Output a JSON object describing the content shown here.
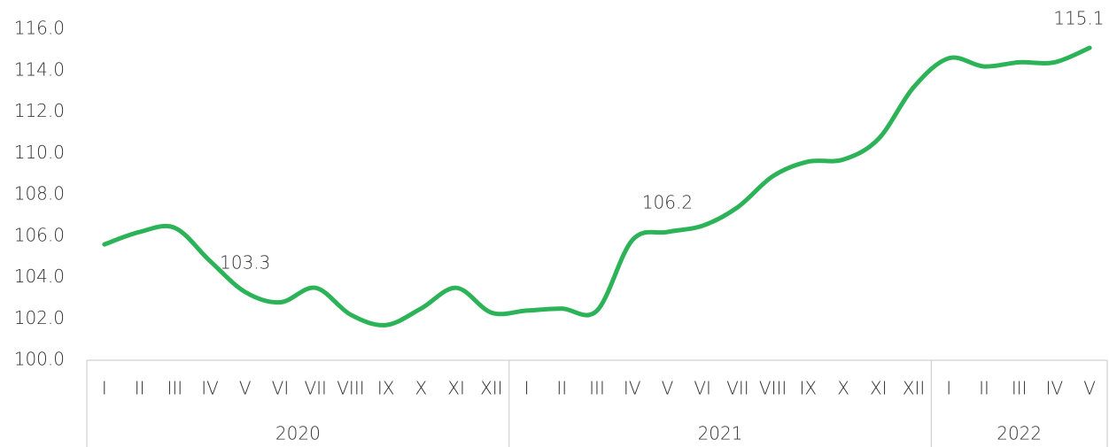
{
  "chart_data": {
    "type": "line",
    "category_groups": [
      {
        "name": "2020",
        "categories": [
          "I",
          "II",
          "III",
          "IV",
          "V",
          "VI",
          "VII",
          "VIII",
          "IX",
          "X",
          "XI",
          "XII"
        ]
      },
      {
        "name": "2021",
        "categories": [
          "I",
          "II",
          "III",
          "IV",
          "V",
          "VI",
          "VII",
          "VIII",
          "IX",
          "X",
          "XI",
          "XII"
        ]
      },
      {
        "name": "2022",
        "categories": [
          "I",
          "II",
          "III",
          "IV",
          "V"
        ]
      }
    ],
    "values": [
      105.6,
      106.2,
      106.4,
      104.8,
      103.3,
      102.8,
      103.5,
      102.2,
      101.7,
      102.5,
      103.5,
      102.3,
      102.4,
      102.5,
      102.4,
      105.8,
      106.2,
      106.5,
      107.4,
      108.9,
      109.6,
      109.7,
      110.7,
      113.2,
      114.6,
      114.2,
      114.4,
      114.4,
      115.1
    ],
    "value_labels": [
      null,
      null,
      null,
      null,
      "103.3",
      null,
      null,
      null,
      null,
      null,
      null,
      null,
      null,
      null,
      null,
      null,
      "106.2",
      null,
      null,
      null,
      null,
      null,
      null,
      null,
      null,
      null,
      null,
      null,
      "115.1"
    ],
    "color": "#2db357",
    "ylim": [
      100,
      116
    ],
    "yticks": [
      {
        "value": 100,
        "label": "100.0"
      },
      {
        "value": 102,
        "label": "102.0"
      },
      {
        "value": 104,
        "label": "104.0"
      },
      {
        "value": 106,
        "label": "106.0"
      },
      {
        "value": 108,
        "label": "108.0"
      },
      {
        "value": 110,
        "label": "110.0"
      },
      {
        "value": 112,
        "label": "112.0"
      },
      {
        "value": 114,
        "label": "114.0"
      },
      {
        "value": 116,
        "label": "116.0"
      }
    ],
    "grid": false
  }
}
